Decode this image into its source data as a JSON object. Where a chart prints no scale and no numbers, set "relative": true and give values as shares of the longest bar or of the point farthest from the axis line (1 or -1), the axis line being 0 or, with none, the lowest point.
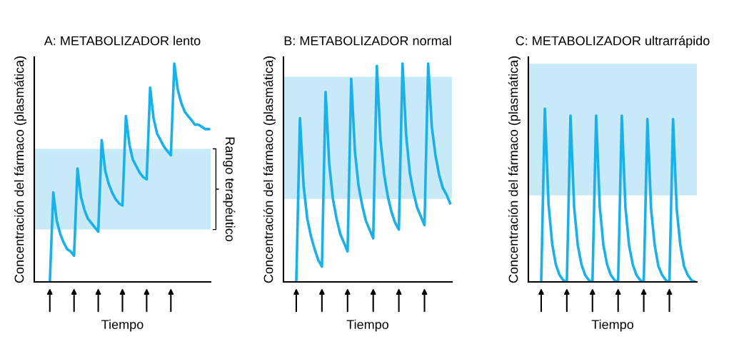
{
  "chart_data": [
    {
      "type": "line",
      "title": "A: METABOLIZADOR lento",
      "xlabel": "Tiempo",
      "ylabel": "Concentración del fármaco (plasmática)",
      "relative": true,
      "legend": false,
      "marker": "none",
      "line_style": "solid",
      "categories": [
        null,
        null,
        null,
        null,
        null,
        null,
        null,
        null,
        null,
        null,
        null,
        null,
        null,
        null,
        null,
        null,
        null,
        null,
        null,
        null,
        null,
        null,
        null,
        null,
        null,
        null,
        null,
        null,
        null,
        null,
        null,
        null,
        null,
        null,
        null,
        null,
        null,
        null,
        null,
        null,
        null,
        null,
        null,
        null,
        null,
        null,
        null,
        null,
        null,
        null,
        null
      ],
      "series": [
        {
          "color": "#1ab0e8",
          "values": [
            null,
            null,
            null,
            null,
            0,
            0.41,
            0.28,
            0.22,
            0.18,
            0.15,
            0.14,
            0.12,
            0.52,
            0.39,
            0.33,
            0.29,
            0.27,
            0.25,
            0.23,
            0.65,
            0.51,
            0.45,
            0.41,
            0.38,
            0.36,
            0.35,
            0.76,
            0.63,
            0.56,
            0.53,
            0.5,
            0.48,
            0.47,
            0.89,
            0.75,
            0.68,
            0.65,
            0.62,
            0.6,
            0.58,
            1.0,
            0.88,
            0.82,
            0.78,
            0.76,
            0.74,
            0.72,
            0.72,
            0.71,
            0.7,
            0.7
          ]
        }
      ],
      "bands": [
        {
          "axis": "y",
          "from": 0.24,
          "to": 0.61,
          "label": "Rango terapéutico",
          "color": "#c8e9f8"
        }
      ]
    },
    {
      "type": "line",
      "title": "B: METABOLIZADOR normal",
      "xlabel": "Tiempo",
      "ylabel": "Concentración del fármaco (plasmática)",
      "relative": true,
      "legend": false,
      "marker": "none",
      "line_style": "solid",
      "categories": [
        null,
        null,
        null,
        null,
        null,
        null,
        null,
        null,
        null,
        null,
        null,
        null,
        null,
        null,
        null,
        null,
        null,
        null,
        null,
        null,
        null,
        null,
        null,
        null,
        null,
        null,
        null,
        null,
        null,
        null,
        null,
        null,
        null,
        null,
        null,
        null,
        null,
        null,
        null,
        null,
        null,
        null,
        null,
        null,
        null,
        null
      ],
      "series": [
        {
          "color": "#1ab0e8",
          "values": [
            null,
            null,
            null,
            0,
            0.75,
            0.44,
            0.29,
            0.21,
            0.15,
            0.1,
            0.07,
            0.87,
            0.54,
            0.38,
            0.29,
            0.22,
            0.18,
            0.14,
            0.93,
            0.6,
            0.44,
            0.35,
            0.28,
            0.24,
            0.2,
            0.99,
            0.65,
            0.49,
            0.39,
            0.32,
            0.27,
            0.24,
            1.0,
            0.67,
            0.5,
            0.41,
            0.34,
            0.3,
            0.26,
            1.0,
            0.71,
            0.58,
            0.49,
            0.43,
            0.4,
            0.36
          ]
        }
      ],
      "bands": [
        {
          "axis": "y",
          "from": 0.38,
          "to": 0.94,
          "color": "#c8e9f8"
        }
      ]
    },
    {
      "type": "line",
      "title": "C: METABOLIZADOR ultrarrápido",
      "xlabel": "Tiempo",
      "ylabel": "Concentración del fármaco (plasmática)",
      "relative": true,
      "legend": false,
      "marker": "none",
      "line_style": "solid",
      "categories": [
        null,
        null,
        null,
        null,
        null,
        null,
        null,
        null,
        null,
        null,
        null,
        null,
        null,
        null,
        null,
        null,
        null,
        null,
        null,
        null,
        null,
        null,
        null,
        null,
        null,
        null,
        null,
        null,
        null,
        null,
        null,
        null,
        null,
        null,
        null,
        null,
        null,
        null,
        null,
        null,
        null,
        null,
        null,
        null,
        null,
        null
      ],
      "series": [
        {
          "color": "#1ab0e8",
          "values": [
            null,
            null,
            null,
            0,
            1.0,
            0.45,
            0.22,
            0.1,
            0.04,
            0.01,
            0,
            0.96,
            0.43,
            0.21,
            0.1,
            0.04,
            0.01,
            0,
            0.96,
            0.43,
            0.21,
            0.1,
            0.04,
            0.01,
            0,
            0.96,
            0.43,
            0.21,
            0.1,
            0.04,
            0.01,
            0,
            0.94,
            0.42,
            0.21,
            0.09,
            0.04,
            0.01,
            0,
            0.94,
            0.42,
            0.21,
            0.09,
            0.04,
            0.01,
            0
          ]
        }
      ],
      "bands": [
        {
          "axis": "y",
          "from": 0.5,
          "to": 1.26,
          "color": "#c8e9f8"
        }
      ]
    }
  ]
}
